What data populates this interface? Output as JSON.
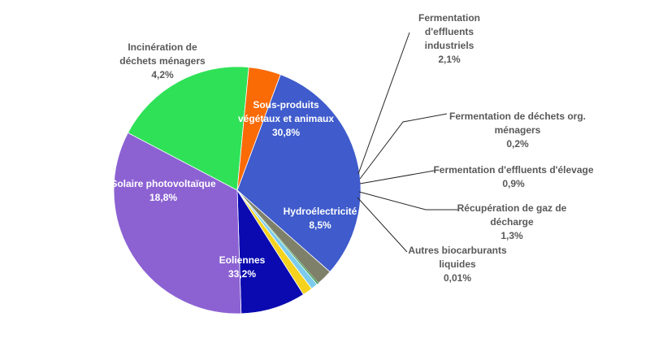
{
  "chart_data": {
    "type": "pie",
    "title": "",
    "slices": [
      {
        "label": [
          "Sous-produits",
          "végétaux et animaux"
        ],
        "value_label": "30,8%",
        "value": 30.8,
        "color": "#3f5bcc"
      },
      {
        "label": [
          "Fermentation",
          "d'effluents",
          "industriels"
        ],
        "value_label": "2,1%",
        "value": 2.1,
        "color": "#7f8069"
      },
      {
        "label": [
          "Fermentation de déchets org.",
          "ménagers"
        ],
        "value_label": "0,2%",
        "value": 0.2,
        "color": "#2e9944"
      },
      {
        "label": [
          "Fermentation d'effluents d'élevage"
        ],
        "value_label": "0,9%",
        "value": 0.9,
        "color": "#7dcbec"
      },
      {
        "label": [
          "Récupération de gaz de",
          "décharge"
        ],
        "value_label": "1,3%",
        "value": 1.3,
        "color": "#f5d21d"
      },
      {
        "label": [
          "Autres biocarburants",
          "liquides"
        ],
        "value_label": "0,01%",
        "value": 0.01,
        "color": "#b7b7b7"
      },
      {
        "label": [
          "Hydroélectricité"
        ],
        "value_label": "8,5%",
        "value": 8.5,
        "color": "#0a0ab0"
      },
      {
        "label": [
          "Eoliennes"
        ],
        "value_label": "33,2%",
        "value": 33.2,
        "color": "#8c62d3"
      },
      {
        "label": [
          "Solaire photovoltaïque"
        ],
        "value_label": "18,8%",
        "value": 18.8,
        "color": "#2fe157"
      },
      {
        "label": [
          "Incinération de",
          "déchets ménagers"
        ],
        "value_label": "4,2%",
        "value": 4.2,
        "color": "#fa6a05"
      }
    ],
    "start_angle_deg": 20.5,
    "direction": "clockwise",
    "legend": "none"
  }
}
